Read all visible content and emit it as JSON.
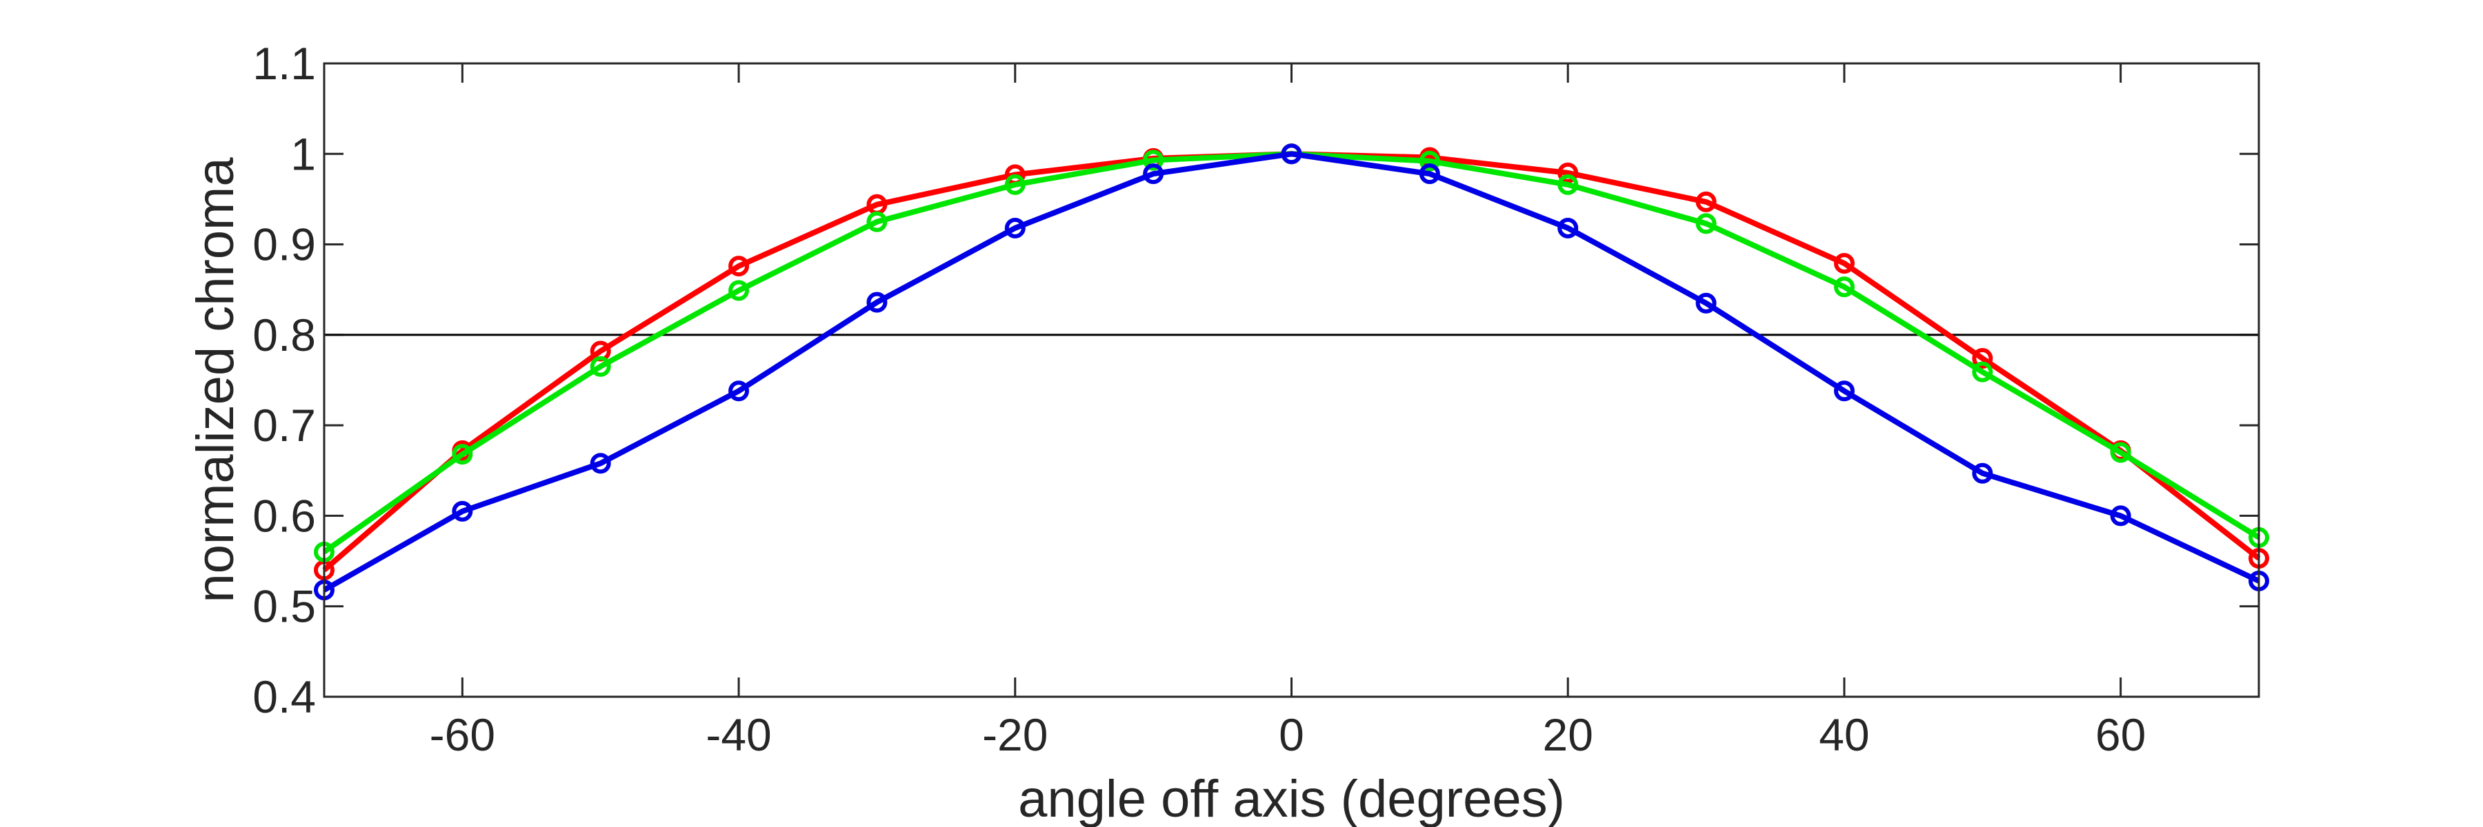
{
  "chart_data": {
    "type": "line",
    "title": "",
    "xlabel": "angle off axis (degrees)",
    "ylabel": "normalized chroma",
    "xlim": [
      -70,
      70
    ],
    "ylim": [
      0.4,
      1.1
    ],
    "xticks": [
      -60,
      -40,
      -20,
      0,
      20,
      40,
      60
    ],
    "xtick_labels": [
      "-60",
      "-40",
      "-20",
      "0",
      "20",
      "40",
      "60"
    ],
    "yticks": [
      0.4,
      0.5,
      0.6,
      0.7,
      0.8,
      0.9,
      1.0,
      1.1
    ],
    "ytick_labels": [
      "0.4",
      "0.5",
      "0.6",
      "0.7",
      "0.8",
      "0.9",
      "1",
      "1.1"
    ],
    "grid": false,
    "reference_line": {
      "y": 0.8,
      "color": "#000000"
    },
    "x": [
      -70,
      -60,
      -50,
      -40,
      -30,
      -20,
      -10,
      0,
      10,
      20,
      30,
      40,
      50,
      60,
      70
    ],
    "series": [
      {
        "color": "#ff0000",
        "values": [
          0.54,
          0.672,
          0.782,
          0.876,
          0.944,
          0.977,
          0.995,
          1.0,
          0.996,
          0.979,
          0.947,
          0.879,
          0.774,
          0.672,
          0.553
        ]
      },
      {
        "color": "#00e600",
        "values": [
          0.56,
          0.668,
          0.765,
          0.849,
          0.925,
          0.966,
          0.993,
          1.0,
          0.992,
          0.966,
          0.923,
          0.853,
          0.759,
          0.67,
          0.576
        ]
      },
      {
        "color": "#0000e6",
        "values": [
          0.518,
          0.605,
          0.658,
          0.738,
          0.836,
          0.918,
          0.978,
          1.0,
          0.978,
          0.918,
          0.835,
          0.738,
          0.647,
          0.6,
          0.528
        ]
      }
    ]
  }
}
